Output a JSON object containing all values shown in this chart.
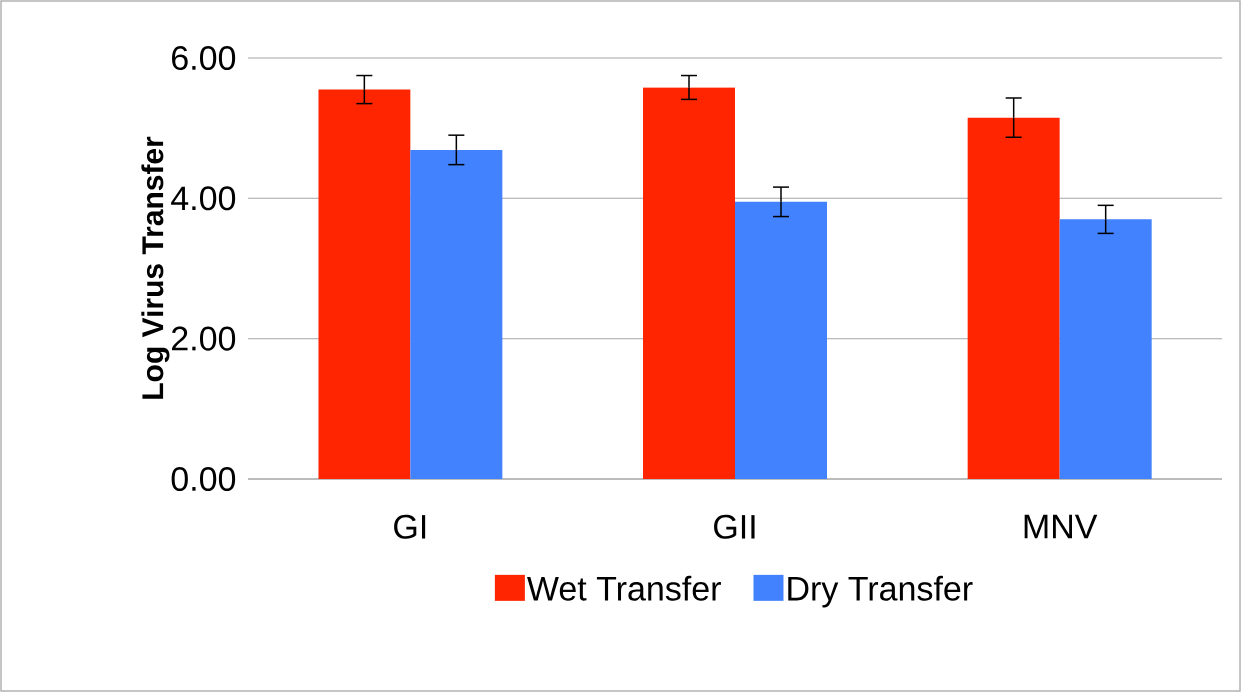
{
  "chart_data": {
    "type": "bar",
    "ylabel": "Log Virus Transfer",
    "categories": [
      "GI",
      "GII",
      "MNV"
    ],
    "series": [
      {
        "name": "Wet Transfer",
        "color": "#ff2500",
        "values": [
          5.55,
          5.58,
          5.15
        ],
        "errors": [
          0.2,
          0.17,
          0.28
        ]
      },
      {
        "name": "Dry Transfer",
        "color": "#4282fe",
        "values": [
          4.69,
          3.95,
          3.7
        ],
        "errors": [
          0.21,
          0.21,
          0.2
        ]
      }
    ],
    "ylim": [
      0,
      6
    ],
    "yticks": [
      {
        "value": 0,
        "label": "0.00"
      },
      {
        "value": 2,
        "label": "2.00"
      },
      {
        "value": 4,
        "label": "4.00"
      },
      {
        "value": 6,
        "label": "6.00"
      }
    ],
    "grid": "y",
    "legend": "bottom"
  }
}
